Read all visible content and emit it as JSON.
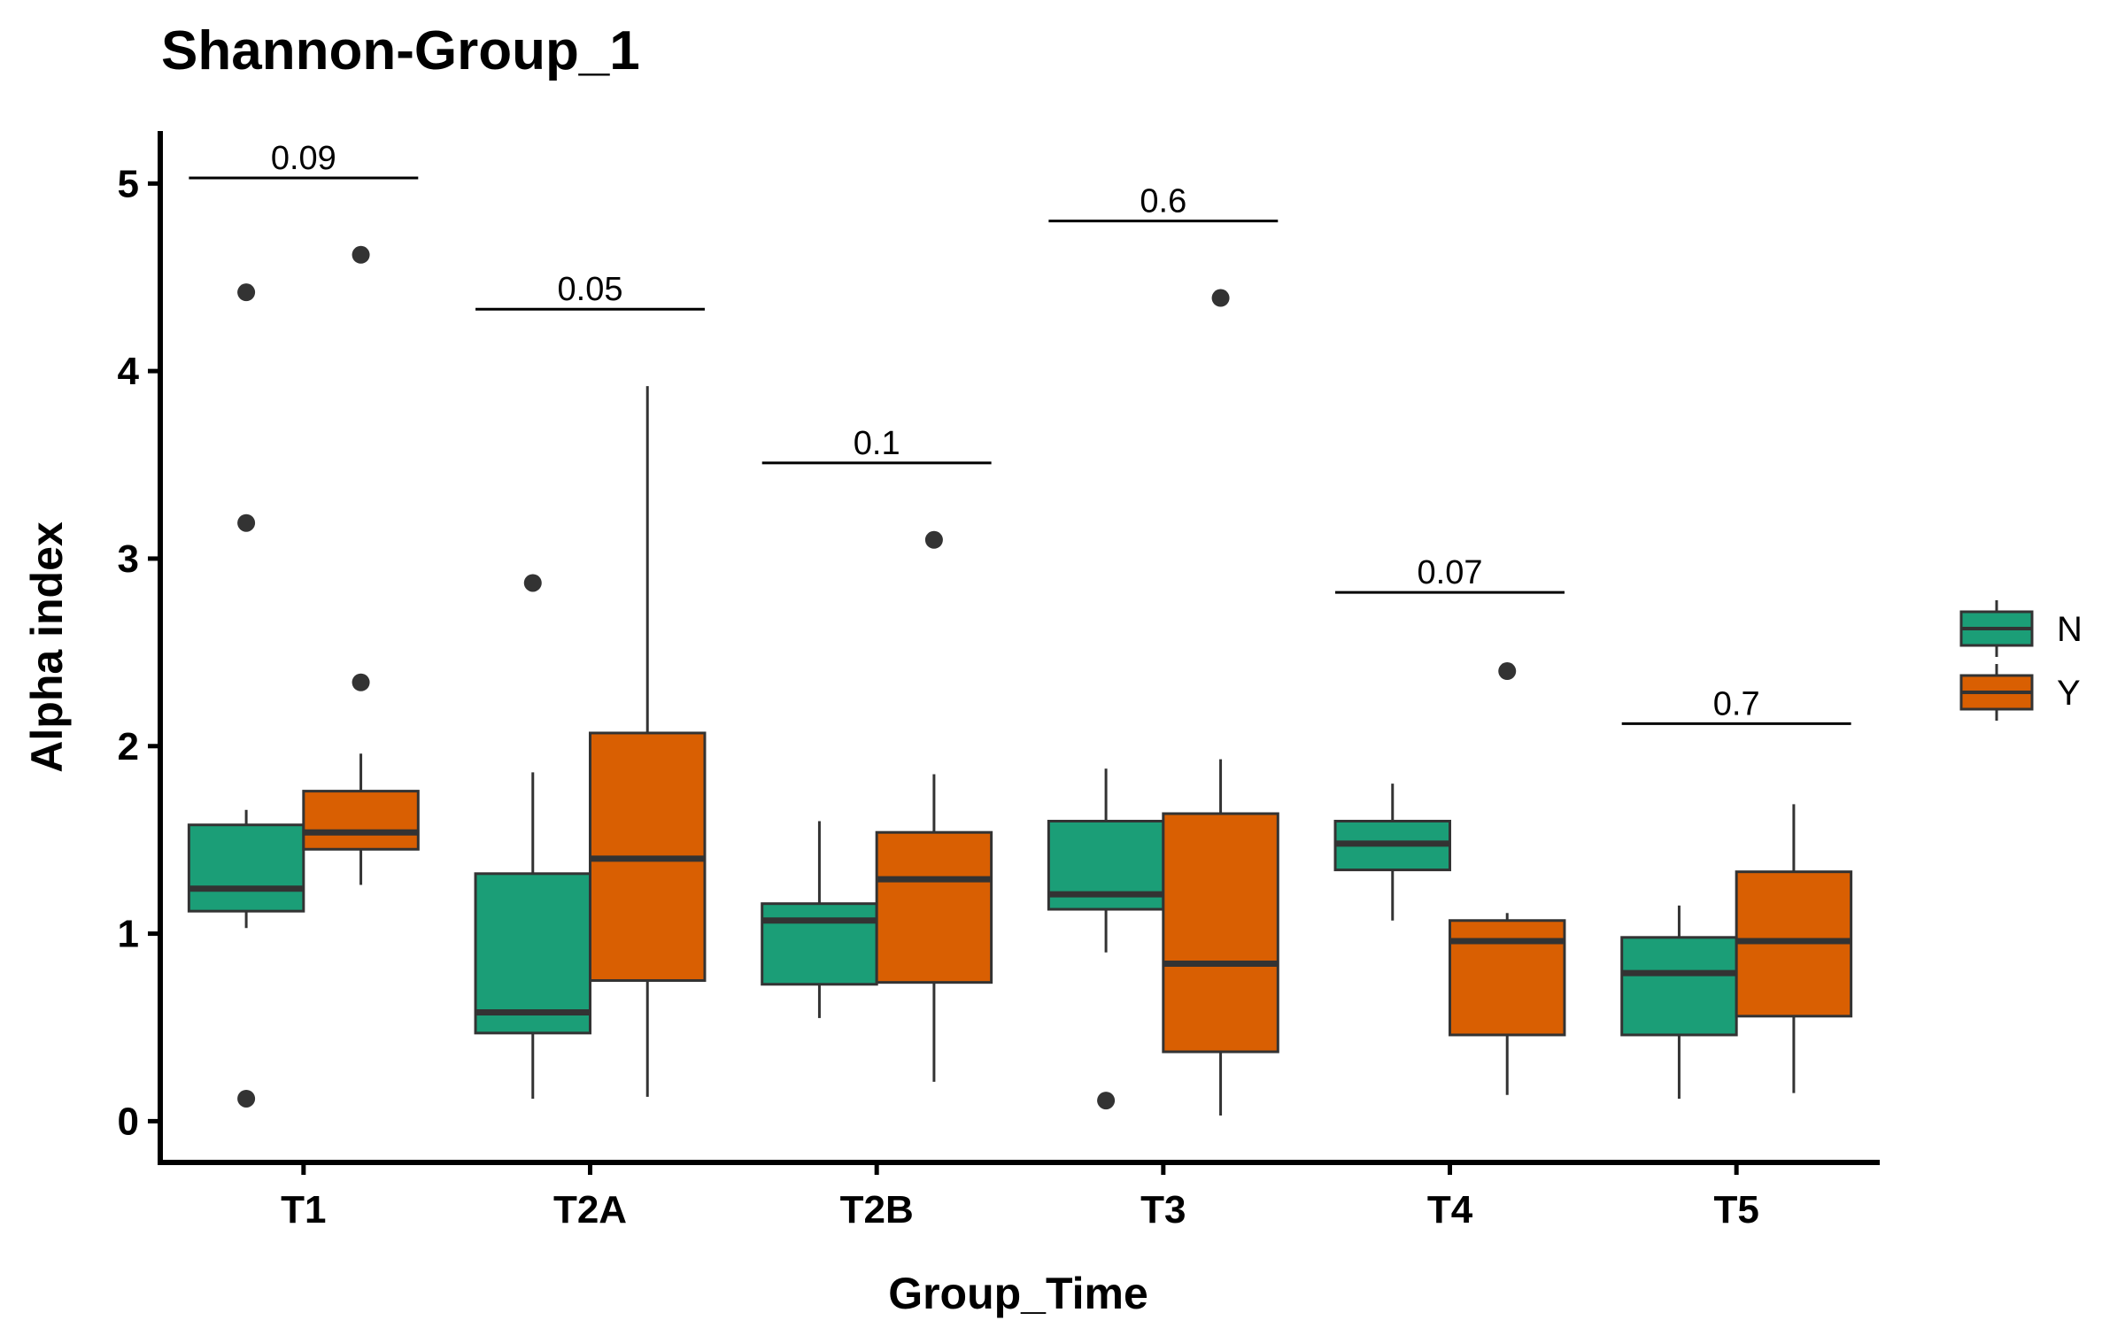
{
  "chart_data": {
    "type": "boxplot",
    "title": "Shannon-Group_1",
    "xlabel": "Group_Time",
    "ylabel": "Alpha index",
    "ylim": [
      -0.22,
      5.28
    ],
    "yticks": [
      0,
      1,
      2,
      3,
      4,
      5
    ],
    "grid": false,
    "legend_position": "right",
    "categories": [
      "T1",
      "T2A",
      "T2B",
      "T3",
      "T4",
      "T5"
    ],
    "series": [
      {
        "name": "N",
        "color": "#1b9e77",
        "boxes": [
          {
            "whisker_low": 1.03,
            "q1": 1.12,
            "median": 1.24,
            "q3": 1.58,
            "whisker_high": 1.66,
            "outliers": [
              4.42,
              3.19,
              0.12
            ]
          },
          {
            "whisker_low": 0.12,
            "q1": 0.47,
            "median": 0.58,
            "q3": 1.32,
            "whisker_high": 1.86,
            "outliers": [
              2.87
            ]
          },
          {
            "whisker_low": 0.55,
            "q1": 0.73,
            "median": 1.07,
            "q3": 1.16,
            "whisker_high": 1.6,
            "outliers": []
          },
          {
            "whisker_low": 0.9,
            "q1": 1.13,
            "median": 1.21,
            "q3": 1.6,
            "whisker_high": 1.88,
            "outliers": [
              0.11
            ]
          },
          {
            "whisker_low": 1.07,
            "q1": 1.34,
            "median": 1.48,
            "q3": 1.6,
            "whisker_high": 1.8,
            "outliers": []
          },
          {
            "whisker_low": 0.12,
            "q1": 0.46,
            "median": 0.79,
            "q3": 0.98,
            "whisker_high": 1.15,
            "outliers": []
          }
        ]
      },
      {
        "name": "Y",
        "color": "#d95f02",
        "boxes": [
          {
            "whisker_low": 1.26,
            "q1": 1.45,
            "median": 1.54,
            "q3": 1.76,
            "whisker_high": 1.96,
            "outliers": [
              4.62,
              2.34
            ]
          },
          {
            "whisker_low": 0.13,
            "q1": 0.75,
            "median": 1.4,
            "q3": 2.07,
            "whisker_high": 3.92,
            "outliers": []
          },
          {
            "whisker_low": 0.21,
            "q1": 0.74,
            "median": 1.29,
            "q3": 1.54,
            "whisker_high": 1.85,
            "outliers": [
              3.1
            ]
          },
          {
            "whisker_low": 0.03,
            "q1": 0.37,
            "median": 0.84,
            "q3": 1.64,
            "whisker_high": 1.93,
            "outliers": [
              4.39
            ]
          },
          {
            "whisker_low": 0.14,
            "q1": 0.46,
            "median": 0.96,
            "q3": 1.07,
            "whisker_high": 1.11,
            "outliers": [
              2.4
            ]
          },
          {
            "whisker_low": 0.15,
            "q1": 0.56,
            "median": 0.96,
            "q3": 1.33,
            "whisker_high": 1.69,
            "outliers": []
          }
        ]
      }
    ],
    "annotations": [
      {
        "category": "T1",
        "label": "0.09",
        "y": 5.03
      },
      {
        "category": "T2A",
        "label": "0.05",
        "y": 4.33
      },
      {
        "category": "T2B",
        "label": "0.1",
        "y": 3.51
      },
      {
        "category": "T3",
        "label": "0.6",
        "y": 4.8
      },
      {
        "category": "T4",
        "label": "0.07",
        "y": 2.82
      },
      {
        "category": "T5",
        "label": "0.7",
        "y": 2.12
      }
    ]
  }
}
